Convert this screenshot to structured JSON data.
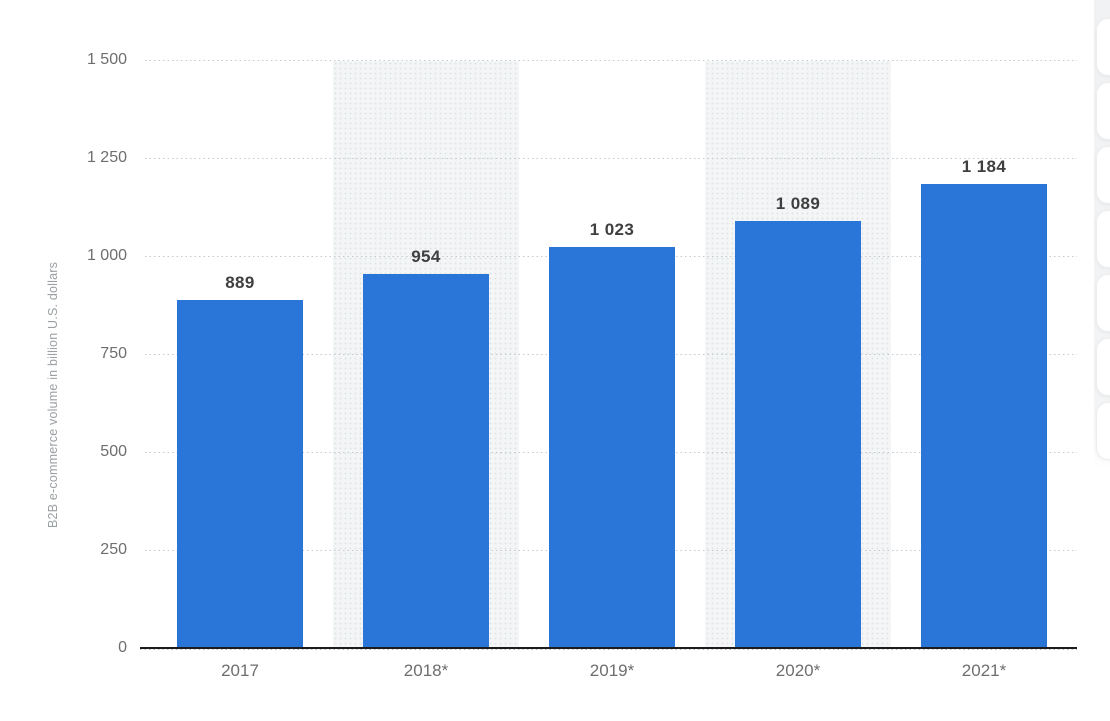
{
  "chart_data": {
    "type": "bar",
    "title": "",
    "xlabel": "",
    "ylabel": "B2B e-commerce volume in billion U.S. dollars",
    "categories": [
      "2017",
      "2018*",
      "2019*",
      "2020*",
      "2021*"
    ],
    "values": [
      889,
      954,
      1023,
      1089,
      1184
    ],
    "value_labels": [
      "889",
      "954",
      "1 023",
      "1 089",
      "1 184"
    ],
    "ylim": [
      0,
      1500
    ],
    "ytick_step": 250,
    "yticks": [
      {
        "value": 0,
        "label": "0"
      },
      {
        "value": 250,
        "label": "250"
      },
      {
        "value": 500,
        "label": "500"
      },
      {
        "value": 750,
        "label": "750"
      },
      {
        "value": 1000,
        "label": "1 000"
      },
      {
        "value": 1250,
        "label": "1 250"
      },
      {
        "value": 1500,
        "label": "1 500"
      }
    ],
    "grid": "horizontal-dotted",
    "legend": "none",
    "bar_color": "#2976d8",
    "value_label_color": "#3f3f3f",
    "tick_label_color": "#6e6e6e",
    "plot_band_color": "#f3f5f6",
    "plot_band_categories": [
      "2018*",
      "2020*"
    ]
  },
  "side_actions": {
    "button_count": 7
  }
}
